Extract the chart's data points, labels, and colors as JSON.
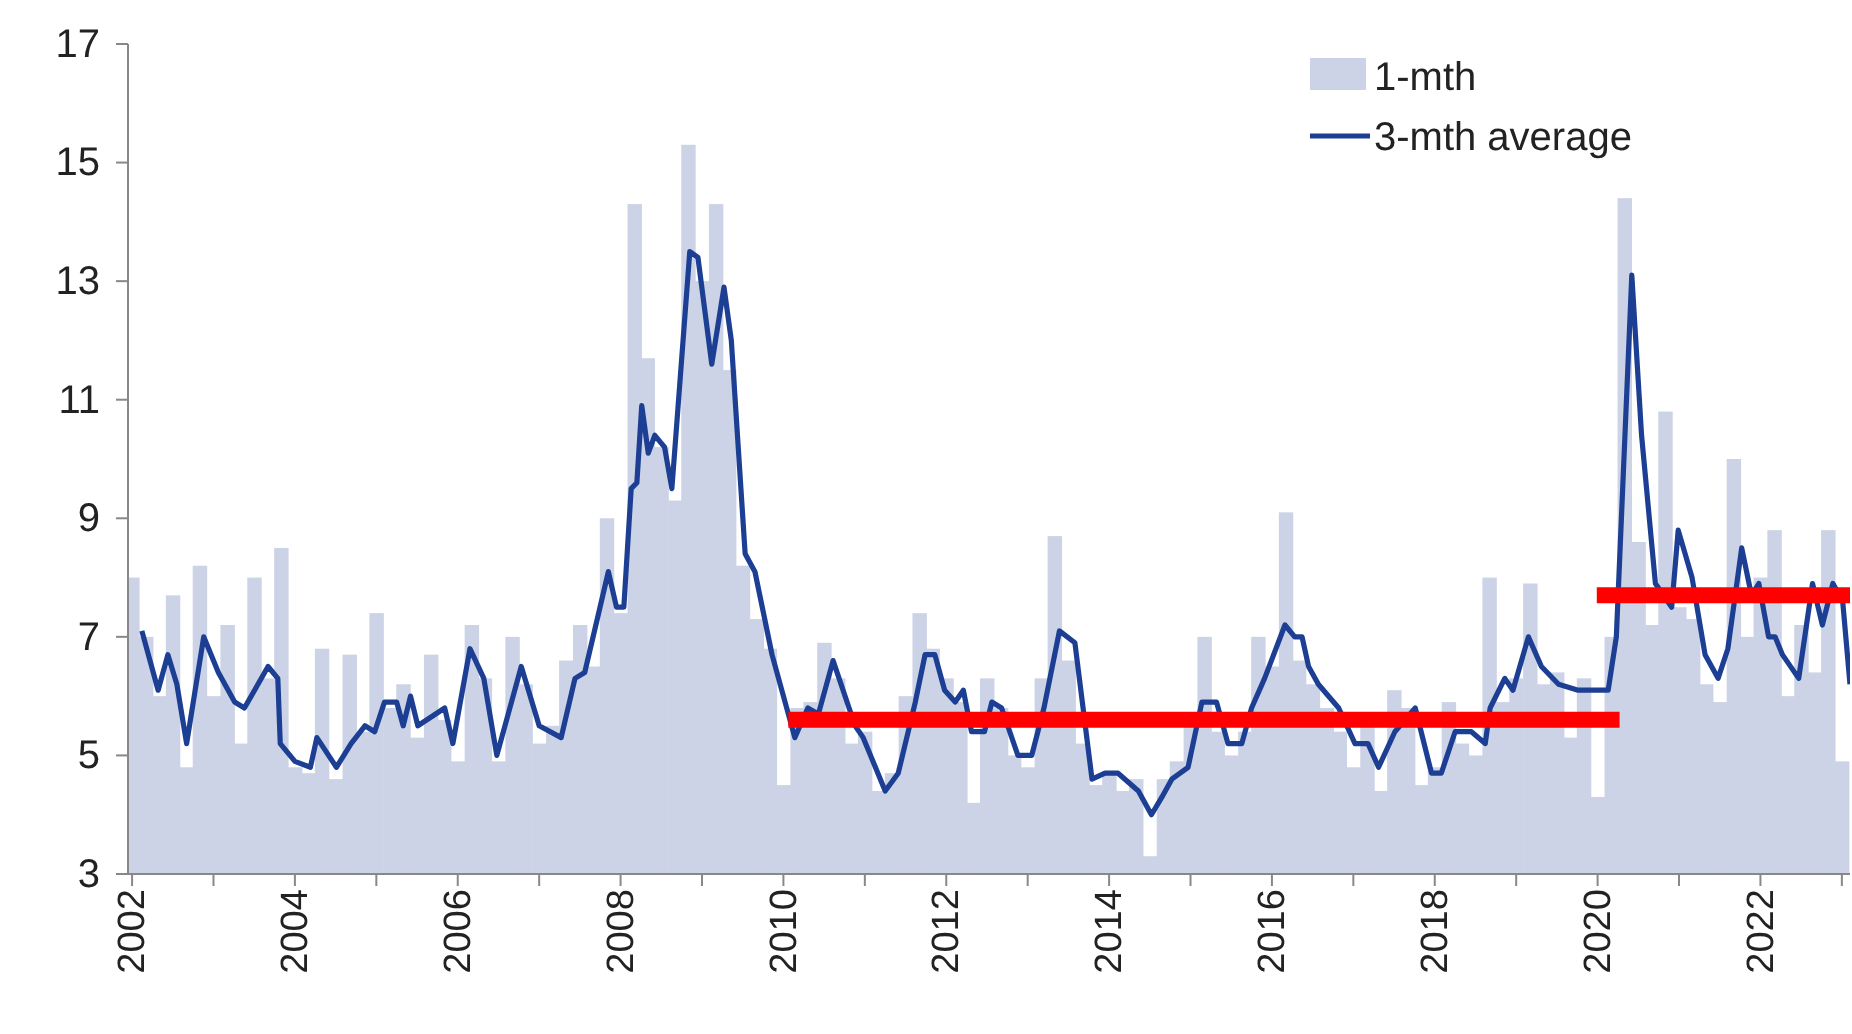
{
  "chart_data": {
    "type": "bar",
    "xlim": [
      2001.95,
      2023.1
    ],
    "ylim": [
      3,
      17
    ],
    "yticks": [
      3,
      5,
      7,
      9,
      11,
      13,
      15,
      17
    ],
    "xticks": [
      2002,
      {
        "value": 2003,
        "label": null
      },
      2004,
      {
        "value": 2005,
        "label": null
      },
      2006,
      {
        "value": 2007,
        "label": null
      },
      2008,
      {
        "value": 2009,
        "label": null
      },
      2010,
      {
        "value": 2011,
        "label": null
      },
      2012,
      {
        "value": 2013,
        "label": null
      },
      2014,
      {
        "value": 2015,
        "label": null
      },
      2016,
      {
        "value": 2017,
        "label": null
      },
      2018,
      {
        "value": 2019,
        "label": null
      },
      2020,
      {
        "value": 2021,
        "label": null
      },
      2022,
      {
        "value": 2023,
        "label": null
      }
    ],
    "legend": "top right",
    "grid": false,
    "marker": "none",
    "line_style": "solid",
    "series": [
      {
        "name": "1-mth",
        "color": "#cdd3e6",
        "x": [
          2002.0,
          2002.17,
          2002.33,
          2002.5,
          2002.67,
          2002.83,
          2003.0,
          2003.17,
          2003.33,
          2003.5,
          2003.67,
          2003.83,
          2004.0,
          2004.17,
          2004.33,
          2004.5,
          2004.67,
          2004.83,
          2005.0,
          2005.17,
          2005.33,
          2005.5,
          2005.67,
          2005.83,
          2006.0,
          2006.17,
          2006.33,
          2006.5,
          2006.67,
          2006.83,
          2007.0,
          2007.17,
          2007.33,
          2007.5,
          2007.67,
          2007.83,
          2008.0,
          2008.17,
          2008.33,
          2008.5,
          2008.67,
          2008.83,
          2009.0,
          2009.17,
          2009.33,
          2009.5,
          2009.67,
          2009.83,
          2010.0,
          2010.17,
          2010.33,
          2010.5,
          2010.67,
          2010.83,
          2011.0,
          2011.17,
          2011.33,
          2011.5,
          2011.67,
          2011.83,
          2012.0,
          2012.17,
          2012.33,
          2012.5,
          2012.67,
          2012.83,
          2013.0,
          2013.17,
          2013.33,
          2013.5,
          2013.67,
          2013.83,
          2014.0,
          2014.17,
          2014.33,
          2014.5,
          2014.67,
          2014.83,
          2015.0,
          2015.17,
          2015.33,
          2015.5,
          2015.67,
          2015.83,
          2016.0,
          2016.17,
          2016.33,
          2016.5,
          2016.67,
          2016.83,
          2017.0,
          2017.17,
          2017.33,
          2017.5,
          2017.67,
          2017.83,
          2018.0,
          2018.17,
          2018.33,
          2018.5,
          2018.67,
          2018.83,
          2019.0,
          2019.17,
          2019.33,
          2019.5,
          2019.67,
          2019.83,
          2020.0,
          2020.17,
          2020.33,
          2020.5,
          2020.67,
          2020.83,
          2021.0,
          2021.17,
          2021.33,
          2021.5,
          2021.67,
          2021.83,
          2022.0,
          2022.17,
          2022.33,
          2022.5,
          2022.67,
          2022.83,
          2023.0
        ],
        "values": [
          8.0,
          7.0,
          6.0,
          7.7,
          4.8,
          8.2,
          6.0,
          7.2,
          5.2,
          8.0,
          6.3,
          8.5,
          4.8,
          4.7,
          6.8,
          4.6,
          6.7,
          5.4,
          7.4,
          5.8,
          6.2,
          5.3,
          6.7,
          5.6,
          4.9,
          7.2,
          6.3,
          4.9,
          7.0,
          6.2,
          5.2,
          5.5,
          6.6,
          7.2,
          6.5,
          9.0,
          7.4,
          14.3,
          11.7,
          10.2,
          9.3,
          15.3,
          13.0,
          14.3,
          11.5,
          8.2,
          7.3,
          6.8,
          4.5,
          5.8,
          5.9,
          6.9,
          6.3,
          5.2,
          5.4,
          4.4,
          4.7,
          6.0,
          7.4,
          6.8,
          6.3,
          5.9,
          4.2,
          6.3,
          5.8,
          5.0,
          4.8,
          6.3,
          8.7,
          6.6,
          5.2,
          4.5,
          4.7,
          4.4,
          4.6,
          3.3,
          4.6,
          4.9,
          5.5,
          7.0,
          5.4,
          5.0,
          5.4,
          7.0,
          6.5,
          9.1,
          6.6,
          6.2,
          5.8,
          5.4,
          4.8,
          5.5,
          4.4,
          6.1,
          5.8,
          4.5,
          4.8,
          5.9,
          5.2,
          5.0,
          8.0,
          5.9,
          6.3,
          7.9,
          6.2,
          6.4,
          5.3,
          6.3,
          4.3,
          7.0,
          14.4,
          8.6,
          7.2,
          10.8,
          7.5,
          7.3,
          6.2,
          5.9,
          10.0,
          7.0,
          8.0,
          8.8,
          6.0,
          7.2,
          6.4,
          8.8,
          4.9
        ]
      },
      {
        "name": "3-mth average",
        "type": "line",
        "color": "#1c3f94",
        "x": [
          2002.12,
          2002.32,
          2002.44,
          2002.55,
          2002.67,
          2002.88,
          2003.06,
          2003.26,
          2003.38,
          2003.67,
          2003.79,
          2003.82,
          2004.0,
          2004.19,
          2004.27,
          2004.51,
          2004.69,
          2004.86,
          2004.98,
          2005.1,
          2005.25,
          2005.33,
          2005.42,
          2005.51,
          2005.84,
          2005.94,
          2006.15,
          2006.32,
          2006.48,
          2006.78,
          2007.0,
          2007.27,
          2007.44,
          2007.56,
          2007.85,
          2007.95,
          2008.04,
          2008.13,
          2008.2,
          2008.26,
          2008.34,
          2008.42,
          2008.54,
          2008.63,
          2008.85,
          2008.95,
          2009.12,
          2009.27,
          2009.36,
          2009.53,
          2009.65,
          2009.86,
          2010.06,
          2010.14,
          2010.3,
          2010.43,
          2010.61,
          2010.88,
          2010.98,
          2011.25,
          2011.41,
          2011.62,
          2011.74,
          2011.86,
          2011.98,
          2012.11,
          2012.21,
          2012.31,
          2012.47,
          2012.56,
          2012.68,
          2012.88,
          2013.05,
          2013.2,
          2013.39,
          2013.58,
          2013.79,
          2013.95,
          2014.11,
          2014.36,
          2014.52,
          2014.65,
          2014.77,
          2014.97,
          2015.14,
          2015.32,
          2015.46,
          2015.63,
          2015.75,
          2015.91,
          2016.16,
          2016.28,
          2016.37,
          2016.45,
          2016.57,
          2016.82,
          2017.02,
          2017.18,
          2017.31,
          2017.51,
          2017.76,
          2017.96,
          2018.08,
          2018.25,
          2018.45,
          2018.62,
          2018.68,
          2018.86,
          2018.96,
          2019.15,
          2019.31,
          2019.52,
          2019.76,
          2019.97,
          2020.13,
          2020.23,
          2020.42,
          2020.54,
          2020.71,
          2020.91,
          2020.99,
          2021.16,
          2021.32,
          2021.48,
          2021.6,
          2021.77,
          2021.89,
          2021.98,
          2022.1,
          2022.18,
          2022.27,
          2022.47,
          2022.64,
          2022.76,
          2022.89,
          2023.01,
          2023.1
        ],
        "values": [
          7.1,
          6.1,
          6.7,
          6.2,
          5.2,
          7.0,
          6.4,
          5.9,
          5.8,
          6.5,
          6.3,
          5.2,
          4.9,
          4.8,
          5.3,
          4.8,
          5.2,
          5.5,
          5.4,
          5.9,
          5.9,
          5.5,
          6.0,
          5.5,
          5.8,
          5.2,
          6.8,
          6.3,
          5.0,
          6.5,
          5.5,
          5.3,
          6.3,
          6.4,
          8.1,
          7.5,
          7.5,
          9.5,
          9.6,
          10.9,
          10.1,
          10.4,
          10.2,
          9.5,
          13.5,
          13.4,
          11.6,
          12.9,
          12.0,
          8.4,
          8.1,
          6.7,
          5.7,
          5.3,
          5.8,
          5.7,
          6.6,
          5.5,
          5.3,
          4.4,
          4.7,
          5.9,
          6.7,
          6.7,
          6.1,
          5.9,
          6.1,
          5.4,
          5.4,
          5.9,
          5.8,
          5.0,
          5.0,
          5.8,
          7.1,
          6.9,
          4.6,
          4.7,
          4.7,
          4.4,
          4.0,
          4.3,
          4.6,
          4.8,
          5.9,
          5.9,
          5.2,
          5.2,
          5.8,
          6.3,
          7.2,
          7.0,
          7.0,
          6.5,
          6.2,
          5.8,
          5.2,
          5.2,
          4.8,
          5.4,
          5.8,
          4.7,
          4.7,
          5.4,
          5.4,
          5.2,
          5.8,
          6.3,
          6.1,
          7.0,
          6.5,
          6.2,
          6.1,
          6.1,
          6.1,
          7.0,
          13.1,
          10.4,
          7.9,
          7.5,
          8.8,
          8.0,
          6.7,
          6.3,
          6.8,
          8.5,
          7.7,
          7.9,
          7.0,
          7.0,
          6.7,
          6.3,
          7.9,
          7.2,
          7.9,
          7.6,
          6.2
        ]
      },
      {
        "type": "line",
        "color": "#ff0000",
        "x": [
          2010.06,
          2020.27
        ],
        "values": [
          5.6,
          5.6
        ]
      },
      {
        "type": "line",
        "color": "#ff0000",
        "x": [
          2019.99,
          2023.1
        ],
        "values": [
          7.7,
          7.7
        ]
      }
    ]
  }
}
